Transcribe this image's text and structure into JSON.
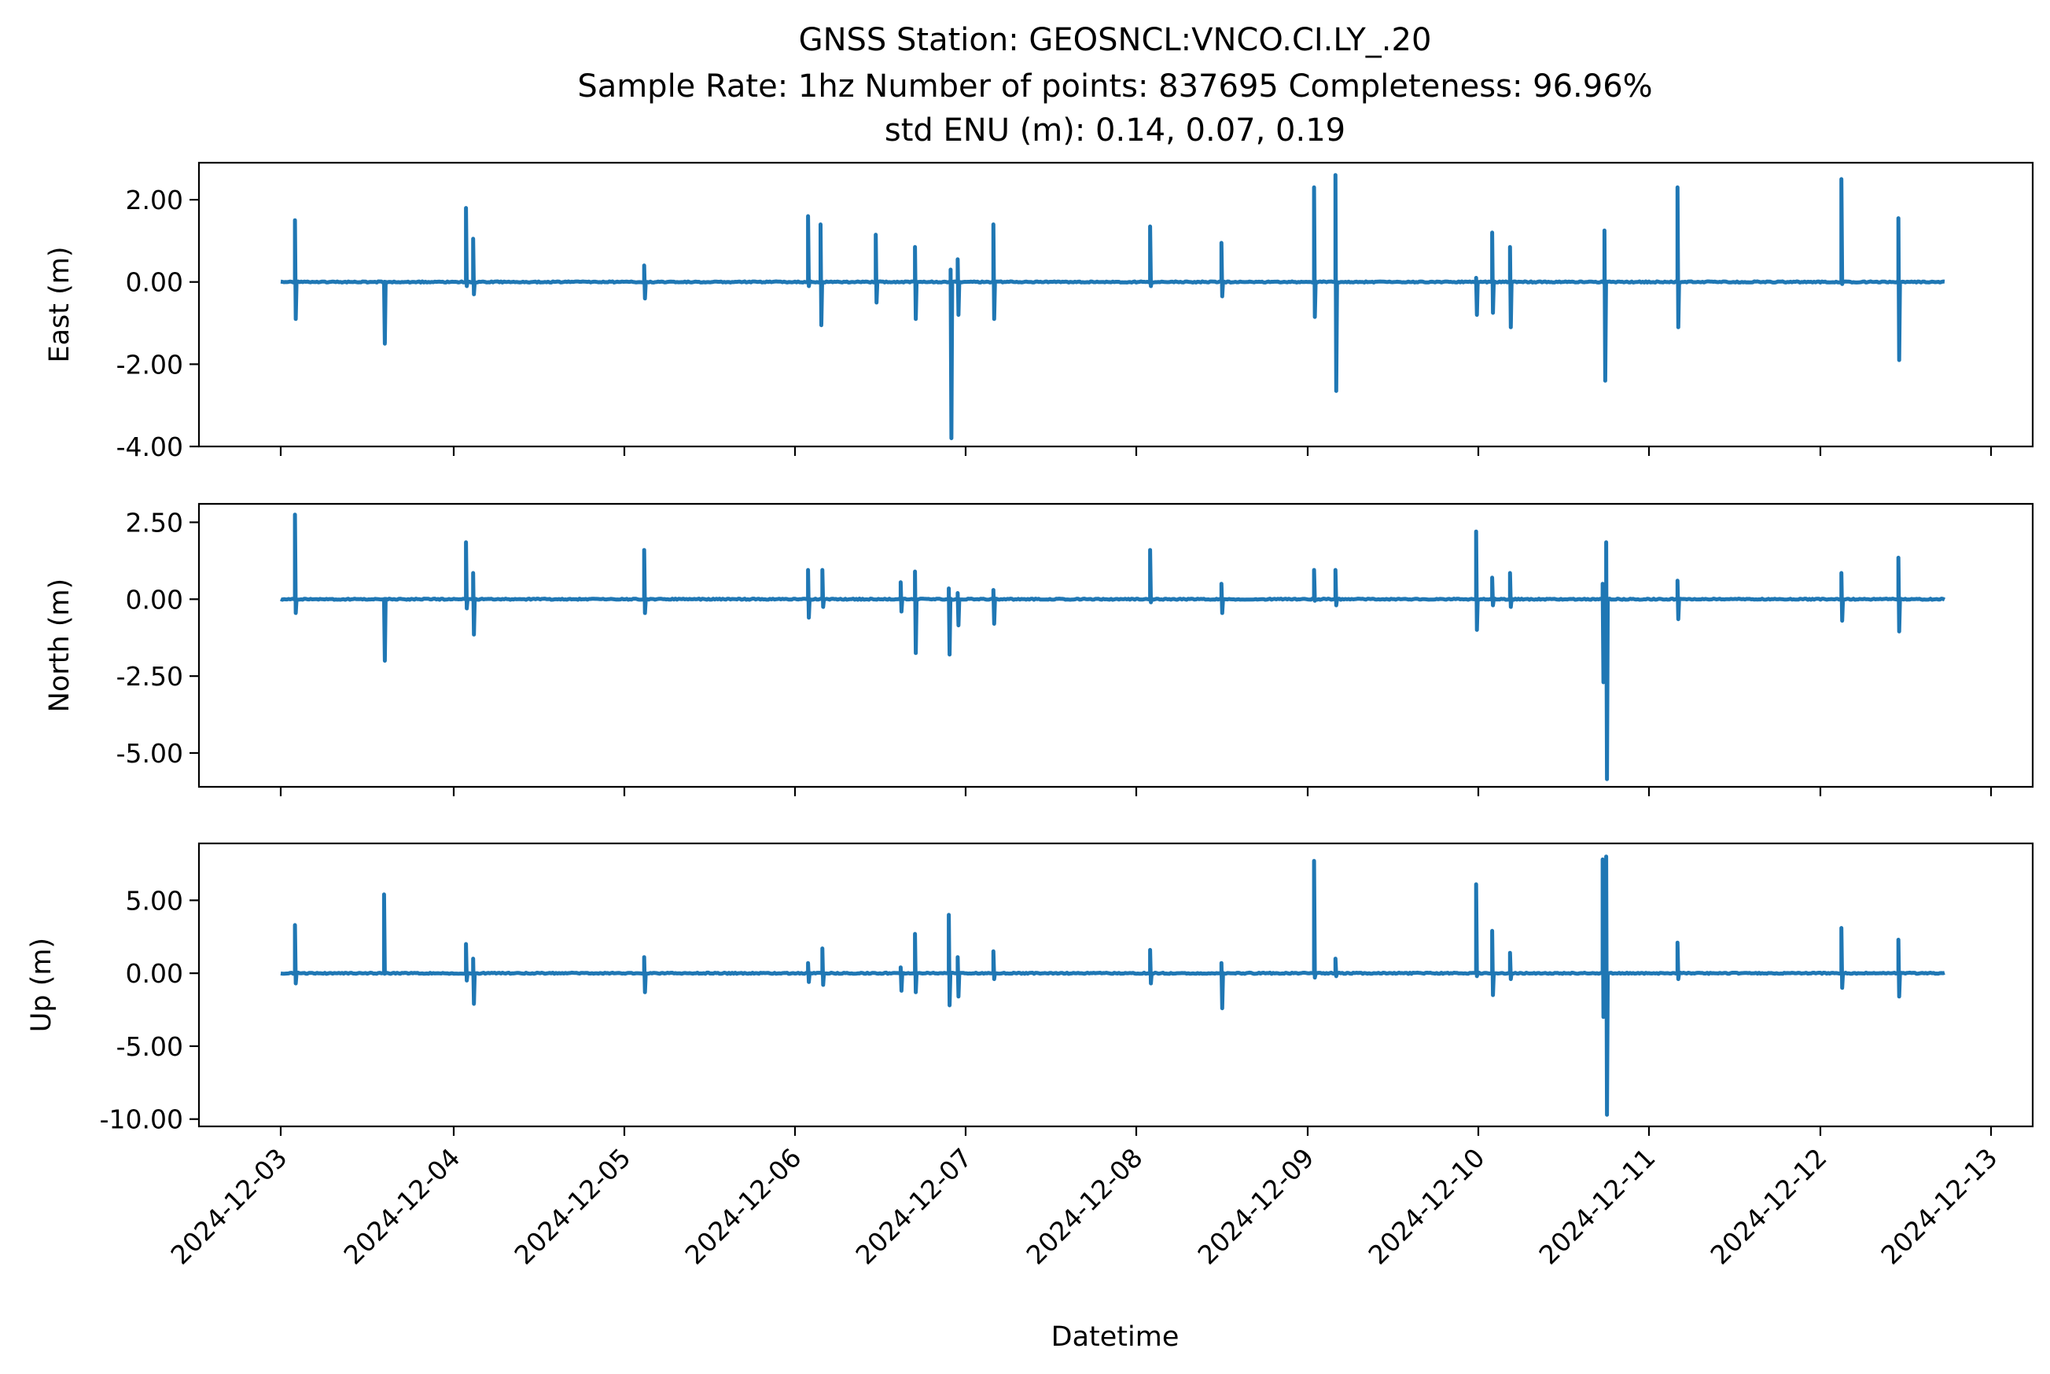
{
  "figure": {
    "title_lines": [
      "GNSS Station: GEOSNCL:VNCO.CI.LY_.20",
      "Sample Rate: 1hz   Number of points: 837695    Completeness:  96.96%",
      "std ENU (m):  0.14, 0.07, 0.19"
    ],
    "xlabel": "Datetime",
    "line_color": "#1f77b4"
  },
  "chart_data": [
    {
      "type": "line",
      "name": "east",
      "ylabel": "East (m)",
      "ylim": [
        -4.0,
        2.9
      ],
      "yticks": [
        -4.0,
        -2.0,
        0.0,
        2.0
      ],
      "ytick_labels": [
        "-4.00",
        "-2.00",
        "0.00",
        "2.00"
      ],
      "x_tick_labels": [
        "2024-12-03",
        "2024-12-04",
        "2024-12-05",
        "2024-12-06",
        "2024-12-07",
        "2024-12-08",
        "2024-12-09",
        "2024-12-10",
        "2024-12-11",
        "2024-12-12",
        "2024-12-13"
      ],
      "x_range": [
        "2024-12-03T00:00",
        "2024-12-12T17:30"
      ],
      "baseline": 0.0,
      "spikes": [
        {
          "t": "2024-12-03T02:00",
          "min": -0.9,
          "max": 1.5
        },
        {
          "t": "2024-12-03T14:30",
          "min": -1.5,
          "max": 0.0
        },
        {
          "t": "2024-12-04T02:00",
          "min": -0.1,
          "max": 1.8
        },
        {
          "t": "2024-12-04T03:00",
          "min": -0.3,
          "max": 1.05
        },
        {
          "t": "2024-12-05T03:00",
          "min": -0.4,
          "max": 0.4
        },
        {
          "t": "2024-12-06T02:00",
          "min": -0.1,
          "max": 1.6
        },
        {
          "t": "2024-12-06T03:45",
          "min": -1.05,
          "max": 1.4
        },
        {
          "t": "2024-12-06T11:30",
          "min": -0.5,
          "max": 1.15
        },
        {
          "t": "2024-12-06T17:00",
          "min": -0.9,
          "max": 0.85
        },
        {
          "t": "2024-12-06T22:00",
          "min": -3.8,
          "max": 0.3
        },
        {
          "t": "2024-12-06T23:00",
          "min": -0.8,
          "max": 0.55
        },
        {
          "t": "2024-12-07T04:00",
          "min": -0.9,
          "max": 1.4
        },
        {
          "t": "2024-12-08T02:00",
          "min": -0.1,
          "max": 1.35
        },
        {
          "t": "2024-12-08T12:00",
          "min": -0.35,
          "max": 0.95
        },
        {
          "t": "2024-12-09T01:00",
          "min": -0.85,
          "max": 2.3
        },
        {
          "t": "2024-12-09T04:00",
          "min": -2.65,
          "max": 2.6
        },
        {
          "t": "2024-12-09T23:45",
          "min": -0.8,
          "max": 0.1
        },
        {
          "t": "2024-12-10T02:00",
          "min": -0.75,
          "max": 1.2
        },
        {
          "t": "2024-12-10T04:30",
          "min": -1.1,
          "max": 0.85
        },
        {
          "t": "2024-12-10T17:45",
          "min": -2.4,
          "max": 1.25
        },
        {
          "t": "2024-12-11T04:00",
          "min": -1.1,
          "max": 2.3
        },
        {
          "t": "2024-12-12T03:00",
          "min": -0.05,
          "max": 2.5
        },
        {
          "t": "2024-12-12T11:00",
          "min": -1.9,
          "max": 1.55
        }
      ]
    },
    {
      "type": "line",
      "name": "north",
      "ylabel": "North (m)",
      "ylim": [
        -6.1,
        3.1
      ],
      "yticks": [
        -5.0,
        -2.5,
        0.0,
        2.5
      ],
      "ytick_labels": [
        "-5.00",
        "-2.50",
        "0.00",
        "2.50"
      ],
      "x_tick_labels": [
        "2024-12-03",
        "2024-12-04",
        "2024-12-05",
        "2024-12-06",
        "2024-12-07",
        "2024-12-08",
        "2024-12-09",
        "2024-12-10",
        "2024-12-11",
        "2024-12-12",
        "2024-12-13"
      ],
      "x_range": [
        "2024-12-03T00:00",
        "2024-12-12T17:30"
      ],
      "baseline": 0.0,
      "spikes": [
        {
          "t": "2024-12-03T02:00",
          "min": -0.45,
          "max": 2.75
        },
        {
          "t": "2024-12-03T14:30",
          "min": -2.0,
          "max": 0.0
        },
        {
          "t": "2024-12-04T02:00",
          "min": -0.3,
          "max": 1.85
        },
        {
          "t": "2024-12-04T03:00",
          "min": -1.15,
          "max": 0.85
        },
        {
          "t": "2024-12-05T03:00",
          "min": -0.45,
          "max": 1.6
        },
        {
          "t": "2024-12-06T02:00",
          "min": -0.6,
          "max": 0.95
        },
        {
          "t": "2024-12-06T04:00",
          "min": -0.25,
          "max": 0.95
        },
        {
          "t": "2024-12-06T15:00",
          "min": -0.4,
          "max": 0.55
        },
        {
          "t": "2024-12-06T17:00",
          "min": -1.75,
          "max": 0.9
        },
        {
          "t": "2024-12-06T21:45",
          "min": -1.8,
          "max": 0.35
        },
        {
          "t": "2024-12-06T23:00",
          "min": -0.85,
          "max": 0.2
        },
        {
          "t": "2024-12-07T04:00",
          "min": -0.8,
          "max": 0.3
        },
        {
          "t": "2024-12-08T02:00",
          "min": -0.1,
          "max": 1.6
        },
        {
          "t": "2024-12-08T12:00",
          "min": -0.45,
          "max": 0.5
        },
        {
          "t": "2024-12-09T01:00",
          "min": -0.05,
          "max": 0.95
        },
        {
          "t": "2024-12-09T04:00",
          "min": -0.2,
          "max": 0.95
        },
        {
          "t": "2024-12-09T23:45",
          "min": -1.0,
          "max": 2.2
        },
        {
          "t": "2024-12-10T02:00",
          "min": -0.2,
          "max": 0.7
        },
        {
          "t": "2024-12-10T04:30",
          "min": -0.25,
          "max": 0.85
        },
        {
          "t": "2024-12-10T17:30",
          "min": -2.7,
          "max": 0.5
        },
        {
          "t": "2024-12-10T18:00",
          "min": -5.85,
          "max": 1.85
        },
        {
          "t": "2024-12-11T04:00",
          "min": -0.65,
          "max": 0.6
        },
        {
          "t": "2024-12-12T03:00",
          "min": -0.7,
          "max": 0.85
        },
        {
          "t": "2024-12-12T11:00",
          "min": -1.05,
          "max": 1.35
        }
      ]
    },
    {
      "type": "line",
      "name": "up",
      "ylabel": "Up (m)",
      "ylim": [
        -10.5,
        8.9
      ],
      "yticks": [
        -10.0,
        -5.0,
        0.0,
        5.0
      ],
      "ytick_labels": [
        "-10.00",
        "-5.00",
        "0.00",
        "5.00"
      ],
      "x_tick_labels": [
        "2024-12-03",
        "2024-12-04",
        "2024-12-05",
        "2024-12-06",
        "2024-12-07",
        "2024-12-08",
        "2024-12-09",
        "2024-12-10",
        "2024-12-11",
        "2024-12-12",
        "2024-12-13"
      ],
      "x_range": [
        "2024-12-03T00:00",
        "2024-12-12T17:30"
      ],
      "baseline": 0.0,
      "spikes": [
        {
          "t": "2024-12-03T02:00",
          "min": -0.7,
          "max": 3.3
        },
        {
          "t": "2024-12-03T14:30",
          "min": 0.0,
          "max": 5.4
        },
        {
          "t": "2024-12-04T02:00",
          "min": -0.5,
          "max": 2.0
        },
        {
          "t": "2024-12-04T03:00",
          "min": -2.1,
          "max": 1.0
        },
        {
          "t": "2024-12-05T03:00",
          "min": -1.3,
          "max": 1.1
        },
        {
          "t": "2024-12-06T02:00",
          "min": -0.6,
          "max": 0.7
        },
        {
          "t": "2024-12-06T04:00",
          "min": -0.8,
          "max": 1.7
        },
        {
          "t": "2024-12-06T15:00",
          "min": -1.2,
          "max": 0.4
        },
        {
          "t": "2024-12-06T17:00",
          "min": -1.3,
          "max": 2.7
        },
        {
          "t": "2024-12-06T21:45",
          "min": -2.2,
          "max": 4.0
        },
        {
          "t": "2024-12-06T23:00",
          "min": -1.6,
          "max": 1.1
        },
        {
          "t": "2024-12-07T04:00",
          "min": -0.4,
          "max": 1.5
        },
        {
          "t": "2024-12-08T02:00",
          "min": -0.7,
          "max": 1.6
        },
        {
          "t": "2024-12-08T12:00",
          "min": -2.4,
          "max": 0.7
        },
        {
          "t": "2024-12-09T01:00",
          "min": -0.3,
          "max": 7.7
        },
        {
          "t": "2024-12-09T04:00",
          "min": -0.2,
          "max": 1.0
        },
        {
          "t": "2024-12-09T23:45",
          "min": -0.2,
          "max": 6.1
        },
        {
          "t": "2024-12-10T02:00",
          "min": -1.5,
          "max": 2.9
        },
        {
          "t": "2024-12-10T04:30",
          "min": -0.4,
          "max": 1.4
        },
        {
          "t": "2024-12-10T17:30",
          "min": -3.0,
          "max": 7.8
        },
        {
          "t": "2024-12-10T18:00",
          "min": -9.7,
          "max": 8.0
        },
        {
          "t": "2024-12-11T04:00",
          "min": -0.4,
          "max": 2.1
        },
        {
          "t": "2024-12-12T03:00",
          "min": -1.0,
          "max": 3.1
        },
        {
          "t": "2024-12-12T11:00",
          "min": -1.6,
          "max": 2.3
        }
      ]
    }
  ]
}
